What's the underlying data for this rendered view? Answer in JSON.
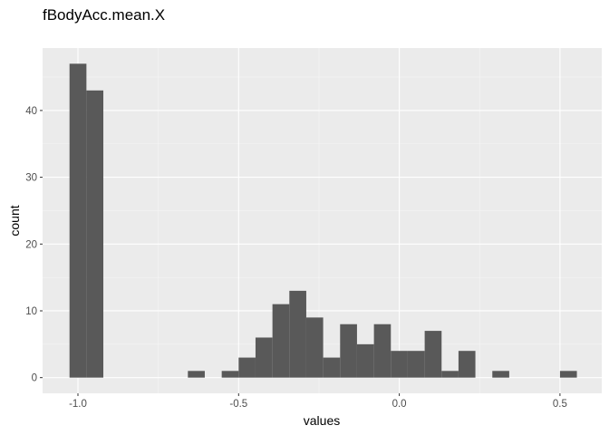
{
  "chart_data": {
    "type": "bar",
    "title": "fBodyAcc.mean.X",
    "xlabel": "values",
    "ylabel": "count",
    "xlim": [
      -1.11,
      0.63
    ],
    "ylim": [
      -2.35,
      49.35
    ],
    "bin_width": 0.0526,
    "x_ticks": [
      {
        "value": -1.0,
        "label": "-1.0"
      },
      {
        "value": -0.5,
        "label": "-0.5"
      },
      {
        "value": 0.0,
        "label": "0.0"
      },
      {
        "value": 0.5,
        "label": "0.5"
      }
    ],
    "y_ticks": [
      {
        "value": 0,
        "label": "0"
      },
      {
        "value": 10,
        "label": "10"
      },
      {
        "value": 20,
        "label": "20"
      },
      {
        "value": 30,
        "label": "30"
      },
      {
        "value": 40,
        "label": "40"
      }
    ],
    "series": [
      {
        "bins": [
          {
            "x": -0.9999,
            "count": 47
          },
          {
            "x": -0.9473,
            "count": 43
          },
          {
            "x": -0.6316,
            "count": 1
          },
          {
            "x": -0.5263,
            "count": 1
          },
          {
            "x": -0.4737,
            "count": 3
          },
          {
            "x": -0.4211,
            "count": 6
          },
          {
            "x": -0.3684,
            "count": 11
          },
          {
            "x": -0.3158,
            "count": 13
          },
          {
            "x": -0.2632,
            "count": 9
          },
          {
            "x": -0.2105,
            "count": 3
          },
          {
            "x": -0.1579,
            "count": 8
          },
          {
            "x": -0.1053,
            "count": 5
          },
          {
            "x": -0.0526,
            "count": 8
          },
          {
            "x": 0.0,
            "count": 4
          },
          {
            "x": 0.0526,
            "count": 4
          },
          {
            "x": 0.1053,
            "count": 7
          },
          {
            "x": 0.1579,
            "count": 1
          },
          {
            "x": 0.2105,
            "count": 4
          },
          {
            "x": 0.3158,
            "count": 1
          },
          {
            "x": 0.5263,
            "count": 1
          }
        ]
      }
    ],
    "colors": {
      "panel_background": "#ebebeb",
      "grid_major": "#ffffff",
      "grid_minor": "#f5f5f5",
      "bar_fill": "#595959",
      "tick_mark": "#333333",
      "tick_label": "#4d4d4d"
    },
    "grid": true
  }
}
